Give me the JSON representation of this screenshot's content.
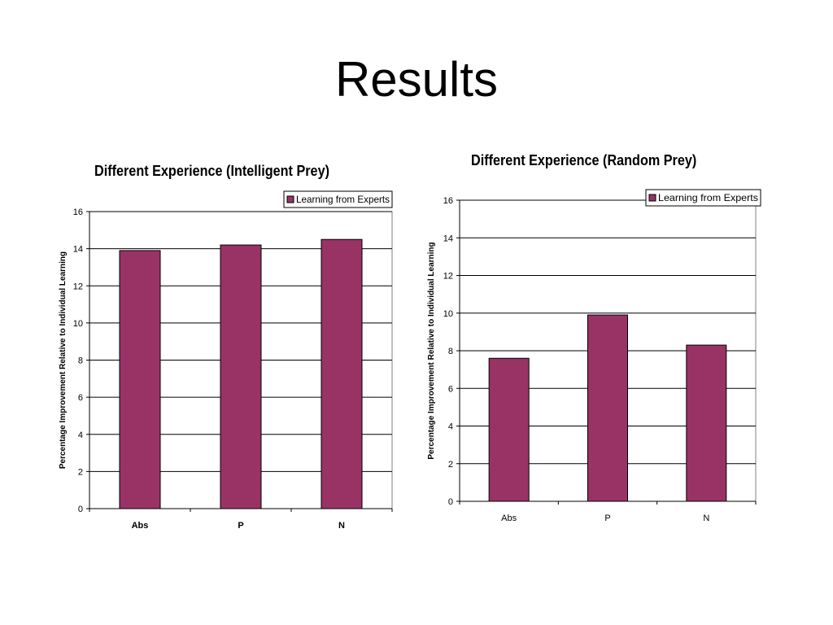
{
  "slide_title": "Results",
  "colors": {
    "bar": "#993366",
    "bar_stroke": "#000000",
    "grid": "#000000"
  },
  "chart_data": [
    {
      "type": "bar",
      "title": "Different Experience (Intelligent Prey)",
      "categories": [
        "Abs",
        "P",
        "N"
      ],
      "series": [
        {
          "name": "Learning from Experts",
          "values": [
            13.9,
            14.2,
            14.5
          ]
        }
      ],
      "ylabel": "Percentage Improvement Relative to Individual Learning",
      "xlabel": "",
      "ylim": [
        0,
        16
      ],
      "yticks": [
        0,
        2,
        4,
        6,
        8,
        10,
        12,
        14,
        16
      ],
      "grid": true,
      "legend_position": "top-right"
    },
    {
      "type": "bar",
      "title": "Different Experience (Random Prey)",
      "categories": [
        "Abs",
        "P",
        "N"
      ],
      "series": [
        {
          "name": "Learning from Experts",
          "values": [
            7.6,
            9.9,
            8.3
          ]
        }
      ],
      "ylabel": "Percentage Improvement Relative to Individual Learning",
      "xlabel": "",
      "ylim": [
        0,
        16
      ],
      "yticks": [
        0,
        2,
        4,
        6,
        8,
        10,
        12,
        14,
        16
      ],
      "grid": true,
      "legend_position": "top-right"
    }
  ]
}
